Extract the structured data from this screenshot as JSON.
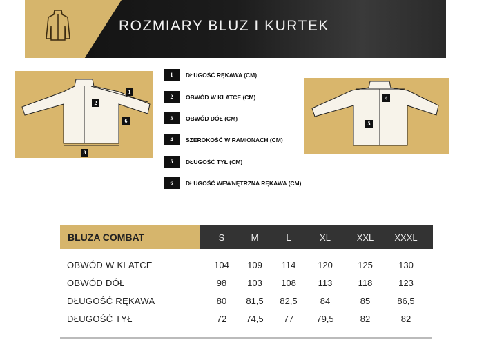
{
  "banner": {
    "title": "ROZMIARY BLUZ I KURTEK"
  },
  "legend": [
    {
      "num": "1",
      "label": "DŁUGOŚĆ RĘKAWA (CM)"
    },
    {
      "num": "2",
      "label": "OBWÓD W KLATCE (CM)"
    },
    {
      "num": "3",
      "label": "OBWÓD DÓŁ (CM)"
    },
    {
      "num": "4",
      "label": "SZEROKOŚĆ W RAMIONACH (CM)"
    },
    {
      "num": "5",
      "label": "DŁUGOŚĆ TYŁ (CM)"
    },
    {
      "num": "6",
      "label": "DŁUGOŚĆ WEWNĘTRZNA RĘKAWA (CM)"
    }
  ],
  "diagram_markers": {
    "front": [
      "1",
      "2",
      "3",
      "6"
    ],
    "back": [
      "4",
      "5"
    ]
  },
  "table": {
    "title": "BLUZA COMBAT",
    "sizes": [
      "S",
      "M",
      "L",
      "XL",
      "XXL",
      "XXXL"
    ],
    "rows": [
      {
        "label": "OBWÓD W KLATCE",
        "values": [
          "104",
          "109",
          "114",
          "120",
          "125",
          "130"
        ]
      },
      {
        "label": "OBWÓD DÓŁ",
        "values": [
          "98",
          "103",
          "108",
          "113",
          "118",
          "123"
        ]
      },
      {
        "label": "DŁUGOŚĆ RĘKAWA",
        "values": [
          "80",
          "81,5",
          "82,5",
          "84",
          "85",
          "86,5"
        ]
      },
      {
        "label": "DŁUGOŚĆ TYŁ",
        "values": [
          "72",
          "74,5",
          "77",
          "79,5",
          "82",
          "82"
        ]
      }
    ]
  },
  "colors": {
    "gold": "#d6b56c",
    "dark": "#333333"
  }
}
